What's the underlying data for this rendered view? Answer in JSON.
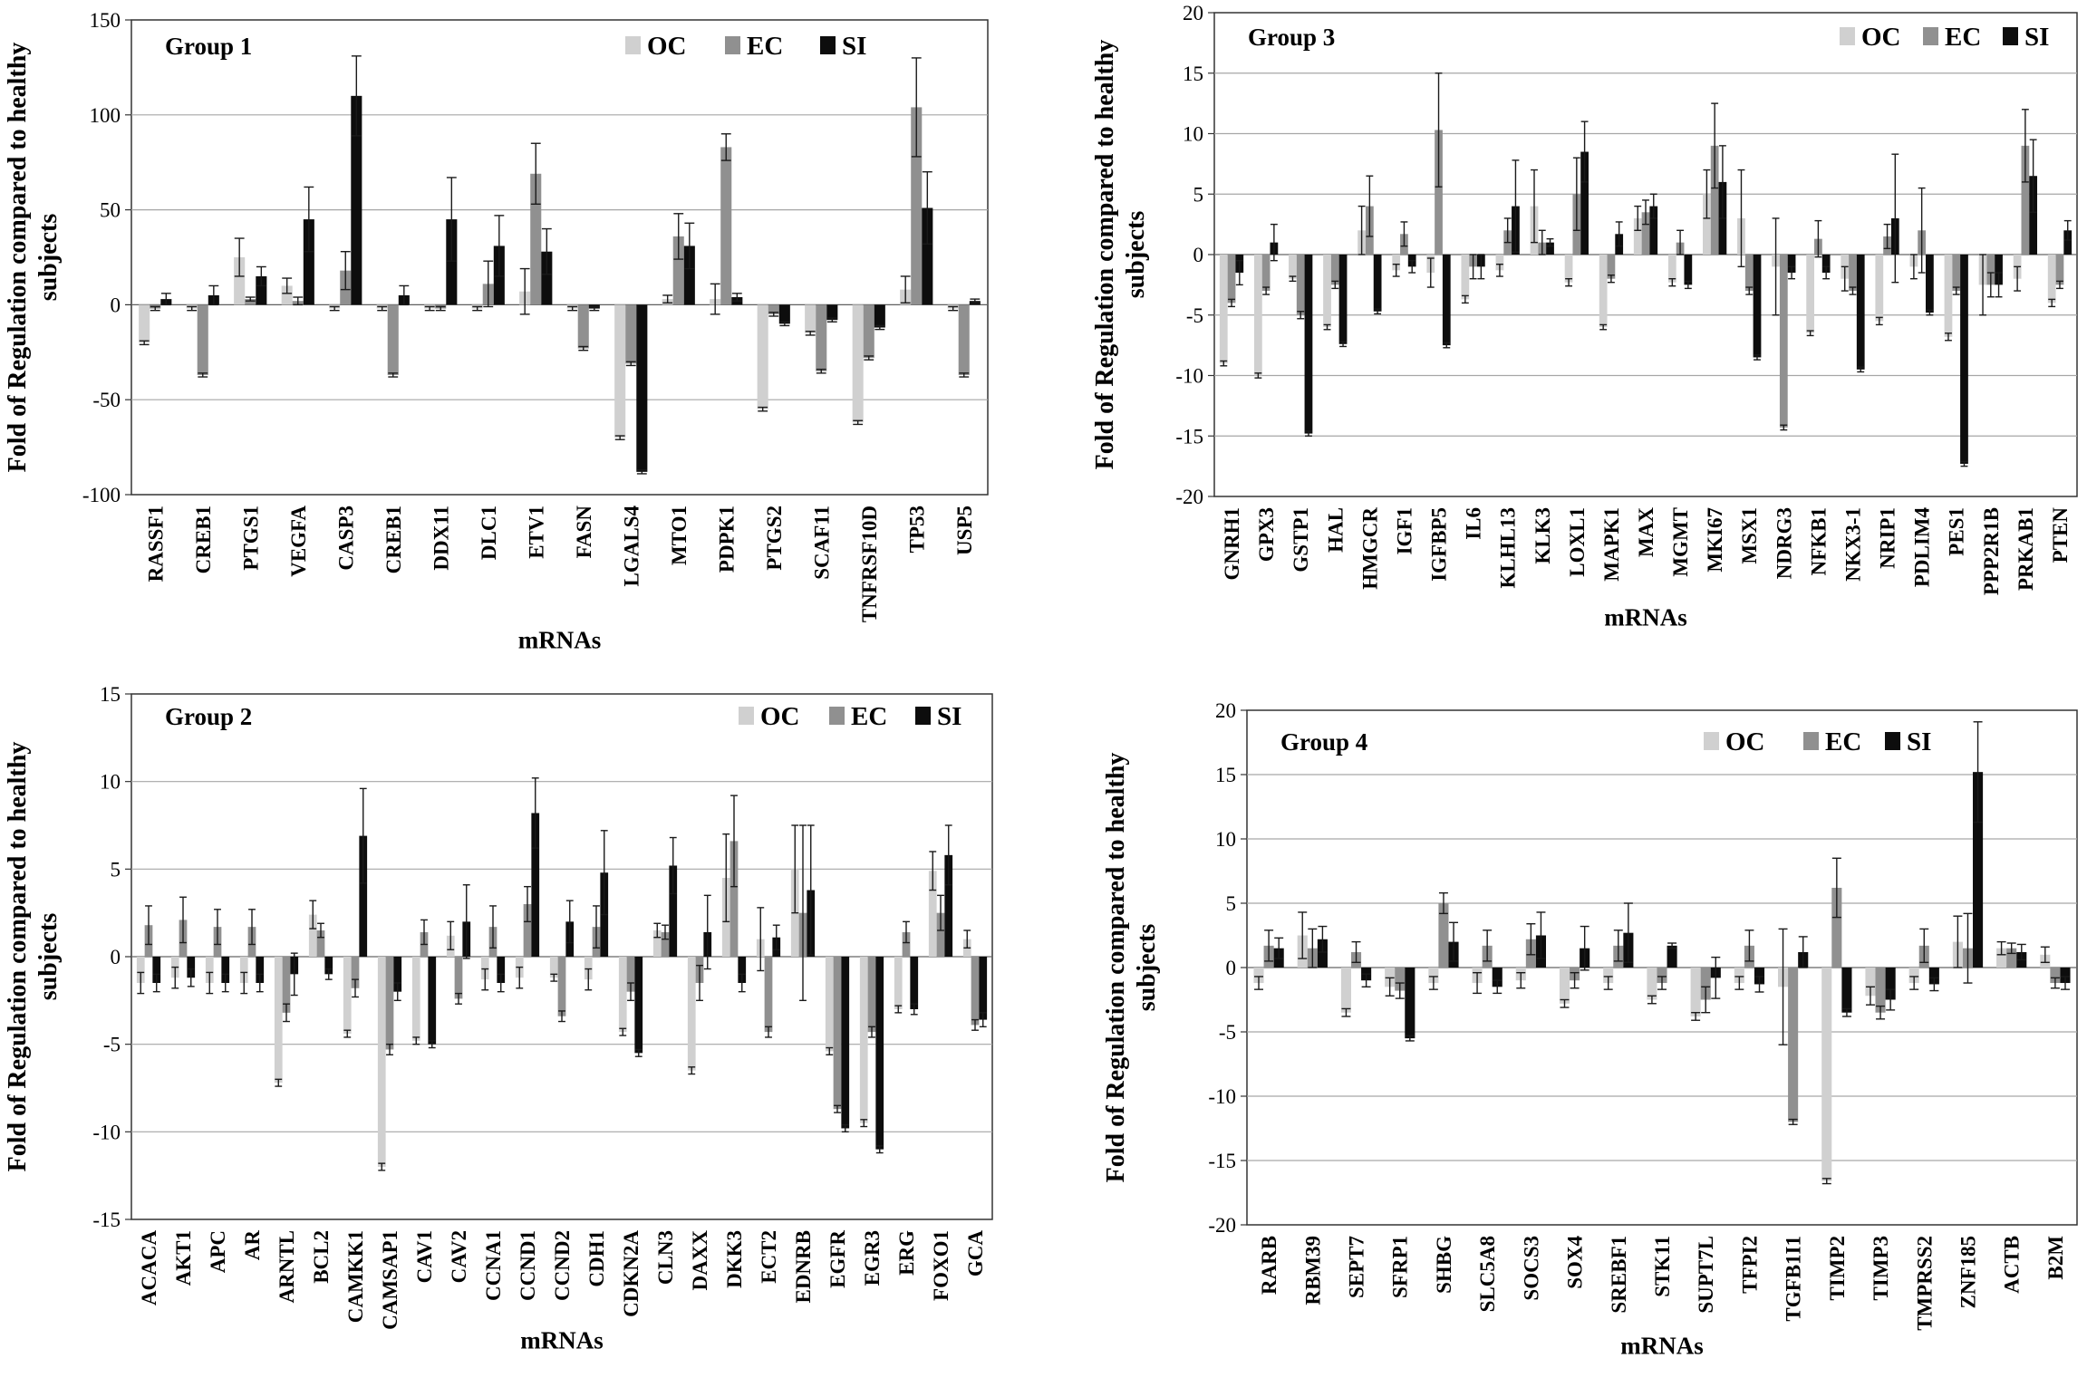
{
  "colors": {
    "OC": "#d0d0d0",
    "EC": "#909090",
    "SI": "#0d0d0d",
    "grid": "#a6a6a6",
    "frame": "#333333"
  },
  "chart_data": [
    {
      "type": "bar",
      "title": "Group 1",
      "xlabel": "mRNAs",
      "ylabel": "Fold of Regulation compared to healthy subjects",
      "ylim": [
        -100,
        150
      ],
      "yticks": [
        -100,
        -50,
        0,
        50,
        100,
        150
      ],
      "legend": [
        "OC",
        "EC",
        "SI"
      ],
      "legend_position": "top-right",
      "categories": [
        "RASSF1",
        "CREB1",
        "PTGS1",
        "VEGFA",
        "CASP3",
        "CREB1",
        "DDX11",
        "DLC1",
        "ETV1",
        "FASN",
        "LGALS4",
        "MTO1",
        "PDPK1",
        "PTGS2",
        "SCAF11",
        "TNFRSF10D",
        "TP53",
        "USP5"
      ],
      "series": [
        {
          "name": "OC",
          "values": [
            -20,
            -2,
            25,
            10,
            -2,
            -2,
            -2,
            -2,
            7,
            -2,
            -70,
            3,
            3,
            -55,
            -15,
            -62,
            8,
            -2
          ],
          "errors": [
            1,
            1,
            10,
            4,
            1,
            1,
            1,
            1,
            12,
            1,
            1,
            2,
            8,
            1,
            1,
            1,
            7,
            1
          ]
        },
        {
          "name": "EC",
          "values": [
            -2,
            -37,
            3,
            2,
            18,
            -37,
            -2,
            11,
            69,
            -23,
            -31,
            36,
            83,
            -5,
            -35,
            -28,
            104,
            -37
          ],
          "errors": [
            1,
            1,
            1,
            2,
            10,
            1,
            1,
            12,
            16,
            1,
            1,
            12,
            7,
            1,
            1,
            1,
            26,
            1
          ]
        },
        {
          "name": "SI",
          "values": [
            3,
            5,
            15,
            45,
            110,
            5,
            45,
            31,
            28,
            -2,
            -88,
            31,
            4,
            -10,
            -8,
            -12,
            51,
            2
          ],
          "errors": [
            3,
            5,
            5,
            17,
            21,
            5,
            22,
            16,
            12,
            1,
            1,
            12,
            2,
            1,
            1,
            1,
            19,
            1
          ]
        }
      ]
    },
    {
      "type": "bar",
      "title": "Group 3",
      "xlabel": "mRNAs",
      "ylabel": "Fold of Regulation compared to healthy subjects",
      "ylim": [
        -20,
        20
      ],
      "yticks": [
        -20,
        -15,
        -10,
        -5,
        0,
        5,
        10,
        15,
        20
      ],
      "legend": [
        "OC",
        "EC",
        "SI"
      ],
      "legend_position": "top-right",
      "categories": [
        "GNRH1",
        "GPX3",
        "GSTP1",
        "HAL",
        "HMGCR",
        "IGF1",
        "IGFBP5",
        "IL6",
        "KLHL13",
        "KLK3",
        "LOXL1",
        "MAPK1",
        "MAX",
        "MGMT",
        "MKI67",
        "MSX1",
        "NDRG3",
        "NFKB1",
        "NKX3-1",
        "NRIP1",
        "PDLIM4",
        "PES1",
        "PPP2R1B",
        "PRKAB1",
        "PTEN"
      ],
      "series": [
        {
          "name": "OC",
          "values": [
            -9,
            -10,
            -2,
            -6,
            2,
            -1.3,
            -1.5,
            -3.7,
            -1.3,
            4,
            -2.3,
            -6,
            3,
            -2.3,
            5,
            3,
            -1,
            -6.5,
            -2,
            -5.5,
            -1,
            -6.8,
            -2.5,
            -2,
            -4
          ],
          "errors": [
            0.2,
            0.2,
            0.2,
            0.2,
            2,
            0.5,
            1.2,
            0.3,
            0.5,
            3,
            0.3,
            0.2,
            1,
            0.3,
            2,
            4,
            4,
            0.2,
            1,
            0.3,
            1,
            0.3,
            2.5,
            1,
            0.3
          ]
        },
        {
          "name": "EC",
          "values": [
            -4,
            -3,
            -5,
            -2.5,
            4,
            1.7,
            10.3,
            -1,
            2,
            1,
            5,
            -2,
            3.5,
            1,
            9,
            -3,
            -14.3,
            1.3,
            -3,
            1.5,
            2,
            -3,
            -2.5,
            9,
            -2.5
          ],
          "errors": [
            0.3,
            0.3,
            0.3,
            0.3,
            2.5,
            1,
            4.7,
            1,
            1,
            1,
            3,
            0.3,
            1,
            1,
            3.5,
            0.3,
            0.2,
            1.5,
            0.3,
            1,
            3.5,
            0.3,
            1,
            3,
            0.3
          ]
        },
        {
          "name": "SI",
          "values": [
            -1.5,
            1,
            -14.8,
            -7.4,
            -4.7,
            -1,
            -7.5,
            -1,
            4,
            1,
            8.5,
            1.7,
            4,
            -2.5,
            6,
            -8.5,
            -1.5,
            -1.5,
            -9.5,
            3,
            -4.8,
            -17.3,
            -2.5,
            6.5,
            2
          ],
          "errors": [
            1,
            1.5,
            0.2,
            0.2,
            0.2,
            0.5,
            0.2,
            1,
            3.8,
            0.3,
            2.5,
            1,
            1,
            0.3,
            3,
            0.2,
            0.5,
            0.5,
            0.2,
            5.3,
            0.2,
            0.2,
            1,
            3,
            0.8
          ]
        }
      ]
    },
    {
      "type": "bar",
      "title": "Group 2",
      "xlabel": "mRNAs",
      "ylabel": "Fold of Regulation compared to healthy subjects",
      "ylim": [
        -15,
        15
      ],
      "yticks": [
        -15,
        -10,
        -5,
        0,
        5,
        10,
        15
      ],
      "legend": [
        "OC",
        "EC",
        "SI"
      ],
      "legend_position": "top-right",
      "categories": [
        "ACACA",
        "AKT1",
        "APC",
        "AR",
        "ARNTL",
        "BCL2",
        "CAMKK1",
        "CAMSAP1",
        "CAV1",
        "CAV2",
        "CCNA1",
        "CCND1",
        "CCND2",
        "CDH1",
        "CDKN2A",
        "CLN3",
        "DAXX",
        "DKK3",
        "ECT2",
        "EDNRB",
        "EGFR",
        "EGR3",
        "ERG",
        "FOXO1",
        "GCA"
      ],
      "series": [
        {
          "name": "OC",
          "values": [
            -1.5,
            -1.2,
            -1.5,
            -1.5,
            -7.2,
            2.4,
            -4.4,
            -12,
            -4.8,
            1.2,
            -1.3,
            -1.2,
            -1.2,
            -1.3,
            -4.3,
            1.5,
            -6.5,
            4.5,
            1,
            5,
            -5.4,
            -9.5,
            -3,
            4.9,
            1
          ],
          "errors": [
            0.6,
            0.6,
            0.6,
            0.6,
            0.2,
            0.8,
            0.2,
            0.2,
            0.2,
            0.8,
            0.6,
            0.6,
            0.2,
            0.6,
            0.2,
            0.4,
            0.2,
            2.5,
            1.8,
            2.5,
            0.2,
            0.2,
            0.2,
            1.1,
            0.5
          ]
        },
        {
          "name": "EC",
          "values": [
            1.8,
            2.1,
            1.7,
            1.7,
            -3.2,
            1.5,
            -1.8,
            -5.3,
            1.4,
            -2.4,
            1.7,
            3,
            -3.4,
            1.7,
            -2,
            1.4,
            -1.5,
            6.6,
            -4.3,
            2.5,
            -8.7,
            -4.3,
            1.4,
            2.5,
            -3.9
          ],
          "errors": [
            1.1,
            1.3,
            1,
            1,
            0.5,
            0.4,
            0.5,
            0.3,
            0.7,
            0.3,
            1.2,
            1,
            0.3,
            1.2,
            0.5,
            0.4,
            1,
            2.6,
            0.3,
            5,
            0.2,
            0.3,
            0.6,
            1,
            0.3
          ]
        },
        {
          "name": "SI",
          "values": [
            -1.5,
            -1.2,
            -1.5,
            -1.5,
            -1,
            -1,
            6.9,
            -2,
            -5,
            2,
            -1.5,
            8.2,
            2,
            4.8,
            -5.5,
            5.2,
            1.4,
            -1.5,
            1.1,
            3.8,
            -9.8,
            -11,
            -3,
            5.8,
            -3.6
          ],
          "errors": [
            0.5,
            0.5,
            0.5,
            0.5,
            1.2,
            0.3,
            2.7,
            0.5,
            0.2,
            2.1,
            0.5,
            2,
            1.2,
            2.4,
            0.2,
            1.6,
            2.1,
            0.5,
            0.7,
            3.7,
            0.2,
            0.2,
            0.3,
            1.7,
            0.4
          ]
        }
      ]
    },
    {
      "type": "bar",
      "title": "Group 4",
      "xlabel": "mRNAs",
      "ylabel": "Fold of Regulation compared to healthy subjects",
      "ylim": [
        -20,
        20
      ],
      "yticks": [
        -20,
        -15,
        -10,
        -5,
        0,
        5,
        10,
        15,
        20
      ],
      "legend": [
        "OC",
        "EC",
        "SI"
      ],
      "legend_position": "top-right",
      "categories": [
        "RARB",
        "RBM39",
        "SEPT7",
        "SFRP1",
        "SHBG",
        "SLC5A8",
        "SOCS3",
        "SOX4",
        "SREBF1",
        "STK11",
        "SUPT7L",
        "TFPI2",
        "TGFB1I1",
        "TIMP2",
        "TIMP3",
        "TMPRSS2",
        "ZNF185",
        "ACTB",
        "B2M"
      ],
      "series": [
        {
          "name": "OC",
          "values": [
            -1.2,
            2.5,
            -3.5,
            -1.5,
            -1.2,
            -1.2,
            -1,
            -2.8,
            -1.2,
            -2.5,
            -3.8,
            -1.2,
            -1.5,
            -16.6,
            -2.2,
            -1.2,
            2,
            1.5,
            1
          ],
          "errors": [
            0.5,
            1.8,
            0.3,
            0.7,
            0.5,
            0.8,
            0.6,
            0.3,
            0.5,
            0.3,
            0.3,
            0.5,
            4.5,
            0.2,
            0.7,
            0.5,
            2,
            0.5,
            0.6
          ]
        },
        {
          "name": "EC",
          "values": [
            1.7,
            1.5,
            1.2,
            -1.8,
            5,
            1.7,
            2.2,
            -1,
            1.7,
            -1.2,
            -2.5,
            1.7,
            -12,
            6.2,
            -3.5,
            1.7,
            1.5,
            1.5,
            -1.2
          ],
          "errors": [
            1.2,
            1.5,
            0.8,
            0.6,
            0.8,
            1.2,
            1.2,
            0.6,
            1.2,
            0.5,
            1,
            1.2,
            0.2,
            2.3,
            0.5,
            1.3,
            2.7,
            0.4,
            0.4
          ]
        },
        {
          "name": "SI",
          "values": [
            1.5,
            2.2,
            -1,
            -5.5,
            2,
            -1.5,
            2.5,
            1.5,
            2.7,
            1.7,
            -0.8,
            -1.3,
            1.2,
            -3.5,
            -2.5,
            -1.3,
            15.2,
            1.2,
            -1.2
          ],
          "errors": [
            0.8,
            1,
            0.5,
            0.2,
            1.5,
            0.5,
            1.8,
            1.7,
            2.3,
            0.2,
            1.6,
            0.6,
            1.2,
            0.3,
            0.8,
            0.5,
            3.9,
            0.6,
            0.5
          ]
        }
      ]
    }
  ]
}
